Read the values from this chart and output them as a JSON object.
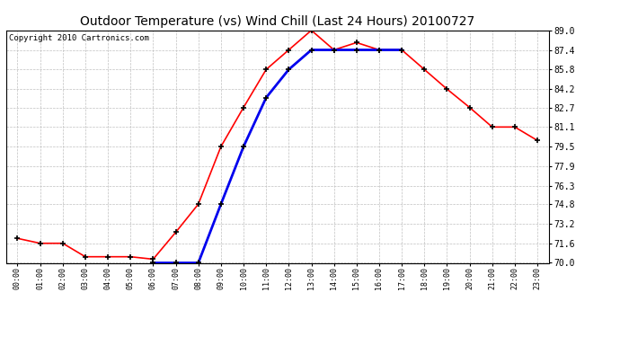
{
  "title": "Outdoor Temperature (vs) Wind Chill (Last 24 Hours) 20100727",
  "copyright": "Copyright 2010 Cartronics.com",
  "x_labels": [
    "00:00",
    "01:00",
    "02:00",
    "03:00",
    "04:00",
    "05:00",
    "06:00",
    "07:00",
    "08:00",
    "09:00",
    "10:00",
    "11:00",
    "12:00",
    "13:00",
    "14:00",
    "15:00",
    "16:00",
    "17:00",
    "18:00",
    "19:00",
    "20:00",
    "21:00",
    "22:00",
    "23:00"
  ],
  "temp_red": [
    72.0,
    71.6,
    71.6,
    70.5,
    70.5,
    70.5,
    70.3,
    72.5,
    74.8,
    79.5,
    82.7,
    85.8,
    87.4,
    89.0,
    87.4,
    88.0,
    87.4,
    87.4,
    85.8,
    84.2,
    82.7,
    81.1,
    81.1,
    80.0
  ],
  "wind_chill_blue": [
    null,
    null,
    null,
    null,
    null,
    null,
    70.0,
    70.0,
    70.0,
    74.8,
    79.5,
    83.5,
    85.8,
    87.4,
    87.4,
    87.4,
    87.4,
    87.4,
    null,
    null,
    null,
    null,
    null,
    null
  ],
  "ylim": [
    70.0,
    89.0
  ],
  "yticks": [
    70.0,
    71.6,
    73.2,
    74.8,
    76.3,
    77.9,
    79.5,
    81.1,
    82.7,
    84.2,
    85.8,
    87.4,
    89.0
  ],
  "ytick_labels": [
    "70.0",
    "71.6",
    "73.2",
    "74.8",
    "76.3",
    "77.9",
    "79.5",
    "81.1",
    "82.7",
    "84.2",
    "85.8",
    "87.4",
    "89.0"
  ],
  "red_color": "#ff0000",
  "blue_color": "#0000ee",
  "bg_color": "#ffffff",
  "grid_color": "#c0c0c0",
  "title_fontsize": 10,
  "copyright_fontsize": 6.5
}
